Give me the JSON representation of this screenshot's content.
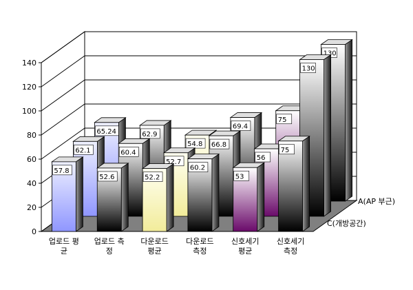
{
  "chart_data": {
    "type": "bar",
    "title": "",
    "categories": [
      [
        "업로드 평",
        "균"
      ],
      [
        "업로드 측",
        "정"
      ],
      [
        "다운로드",
        "평균"
      ],
      [
        "다운로드",
        "측정"
      ],
      [
        "신호세기",
        "평균"
      ],
      [
        "신호세기",
        "측정"
      ]
    ],
    "series": [
      {
        "name": "C(개방공간)",
        "values": [
          57.8,
          52.6,
          52.2,
          60.2,
          53,
          75
        ]
      },
      {
        "name": "",
        "values": [
          62.1,
          60.4,
          52.7,
          66.8,
          56,
          130
        ]
      },
      {
        "name": "A(AP 부근)",
        "values": [
          65.24,
          62.9,
          54.8,
          69.4,
          75,
          130
        ]
      }
    ],
    "series_depth_labels": [
      "C(개방공간)",
      "A(AP 부근)"
    ],
    "series_colors": [
      [
        "#d8dcff",
        "#6f76f0",
        "#f0f0f0",
        "#000000",
        "#fff7c0",
        "#fff0c8"
      ],
      [
        "#b8bcff",
        "#000000",
        "#f0f0f0",
        "#000000",
        "#7a1a7a",
        "#000000"
      ],
      [
        "#b0b4ff",
        "#000000",
        "#000000",
        "#000000",
        "#ffffff",
        "#ffffff"
      ]
    ],
    "y_ticks": [
      0,
      20,
      40,
      60,
      80,
      100,
      120,
      140
    ],
    "ylim": [
      0,
      140
    ],
    "grid": true,
    "legend": "depth-axis-right"
  }
}
